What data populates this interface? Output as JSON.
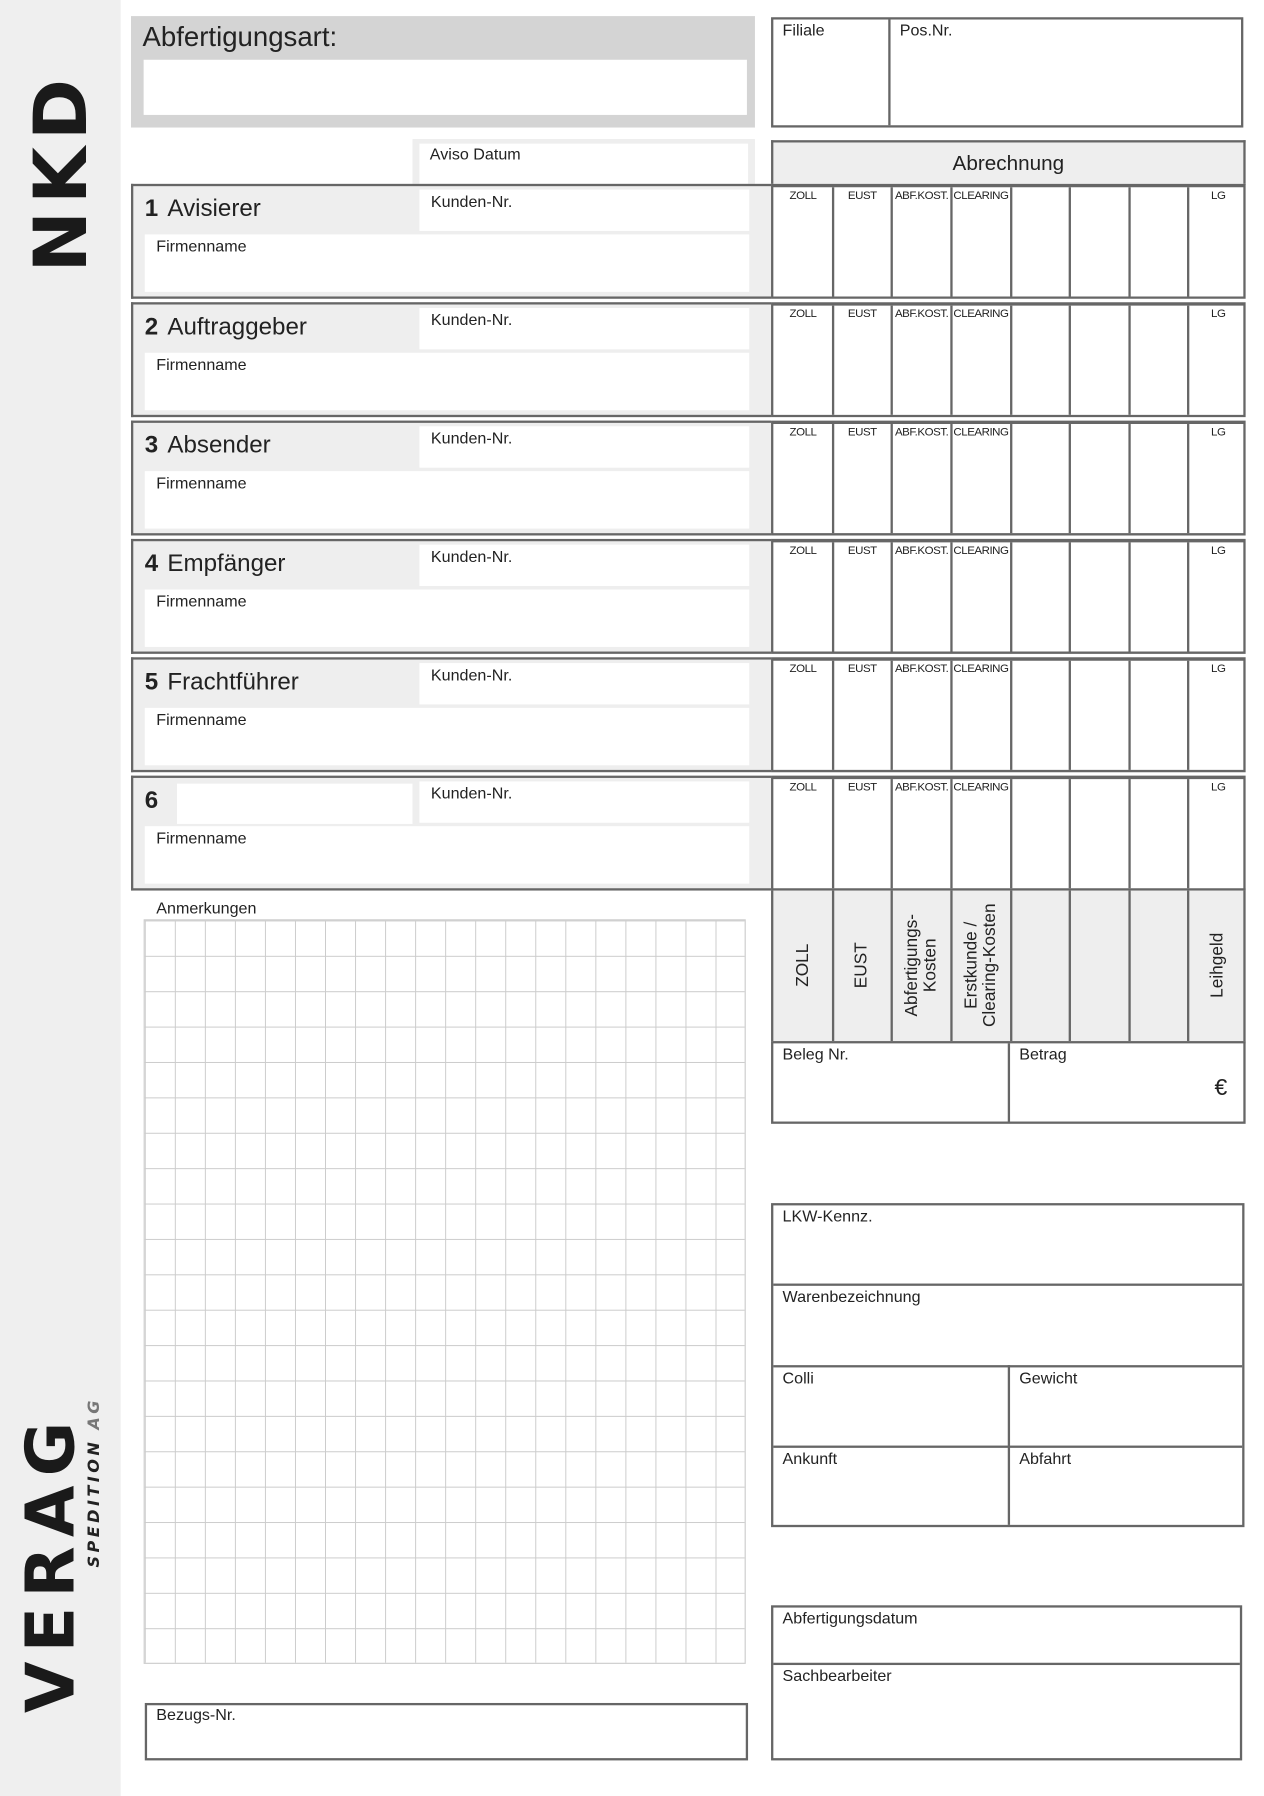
{
  "logos": {
    "top": "NKD",
    "bottom": "VERAG",
    "bottom_sub": "SPEDITION",
    "bottom_sub2": "AG"
  },
  "header": {
    "abfertigungsart": "Abfertigungsart:",
    "filiale": "Filiale",
    "pos_nr": "Pos.Nr.",
    "aviso_datum": "Aviso Datum",
    "abrechnung": "Abrechnung"
  },
  "parties": [
    {
      "num": "1",
      "title": "Avisierer",
      "kunden_nr": "Kunden-Nr.",
      "firmenname": "Firmenname"
    },
    {
      "num": "2",
      "title": "Auftraggeber",
      "kunden_nr": "Kunden-Nr.",
      "firmenname": "Firmenname"
    },
    {
      "num": "3",
      "title": "Absender",
      "kunden_nr": "Kunden-Nr.",
      "firmenname": "Firmenname"
    },
    {
      "num": "4",
      "title": "Empfänger",
      "kunden_nr": "Kunden-Nr.",
      "firmenname": "Firmenname"
    },
    {
      "num": "5",
      "title": "Frachtführer",
      "kunden_nr": "Kunden-Nr.",
      "firmenname": "Firmenname"
    },
    {
      "num": "6",
      "title": "",
      "kunden_nr": "Kunden-Nr.",
      "firmenname": "Firmenname"
    }
  ],
  "abrechnung_columns": [
    "ZOLL",
    "EUST",
    "ABF.KOST.",
    "CLEARING",
    "",
    "",
    "",
    "LG"
  ],
  "summary_columns": [
    "ZOLL",
    "EUST",
    "Abfertigungs-\nKosten",
    "Erstkunde /\nClearing-Kosten",
    "",
    "",
    "",
    "Leihgeld"
  ],
  "beleg": {
    "beleg_nr": "Beleg Nr.",
    "betrag": "Betrag",
    "currency": "€"
  },
  "anmerkungen": "Anmerkungen",
  "bezugs_nr": "Bezugs-Nr.",
  "transport": {
    "lkw": "LKW-Kennz.",
    "waren": "Warenbezeichnung",
    "colli": "Colli",
    "gewicht": "Gewicht",
    "ankunft": "Ankunft",
    "abfahrt": "Abfahrt"
  },
  "footer": {
    "abfertigungsdatum": "Abfertigungsdatum",
    "sachbearbeiter": "Sachbearbeiter"
  }
}
